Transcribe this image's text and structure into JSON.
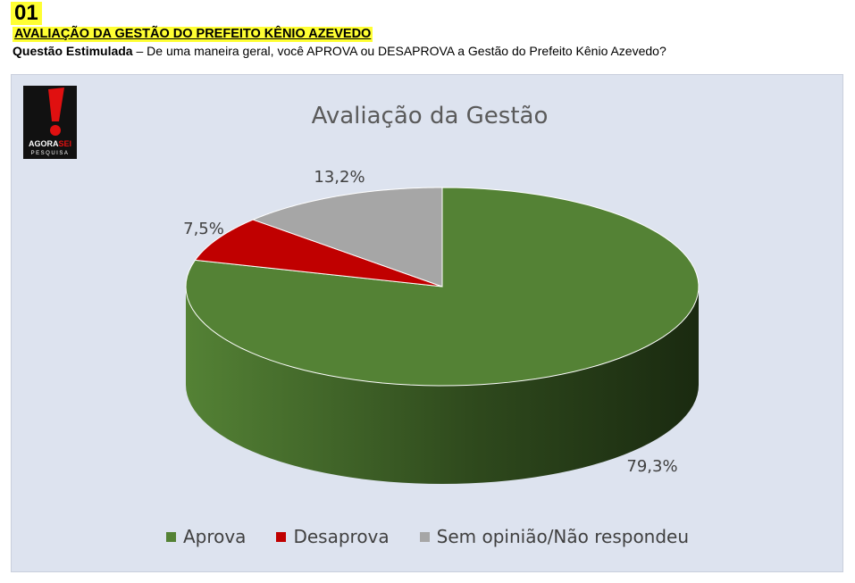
{
  "header": {
    "number": "01",
    "title": "AVALIAÇÃO DA GESTÃO DO PREFEITO KÊNIO AZEVEDO",
    "question_label": "Questão Estimulada",
    "question_text": " – De uma maneira geral, você APROVA ou DESAPROVA a Gestão do Prefeito Kênio Azevedo?"
  },
  "logo": {
    "name": "AGORASEI",
    "name_part1": "AGORA",
    "name_part2": "SEI",
    "tagline": "PESQUISA"
  },
  "chart_data": {
    "type": "pie",
    "title": "Avaliação da Gestão",
    "style": "3d",
    "legend_position": "bottom",
    "slices": [
      {
        "label": "Aprova",
        "value": 79.3,
        "display": "79,3%",
        "color": "#548235",
        "side_color": "#2f4a1d"
      },
      {
        "label": "Desaprova",
        "value": 7.5,
        "display": "7,5%",
        "color": "#c00000",
        "side_color": "#7a0000"
      },
      {
        "label": "Sem opinião/Não respondeu",
        "value": 13.2,
        "display": "13,2%",
        "color": "#a6a6a6",
        "side_color": "#6e6e6e"
      }
    ]
  }
}
